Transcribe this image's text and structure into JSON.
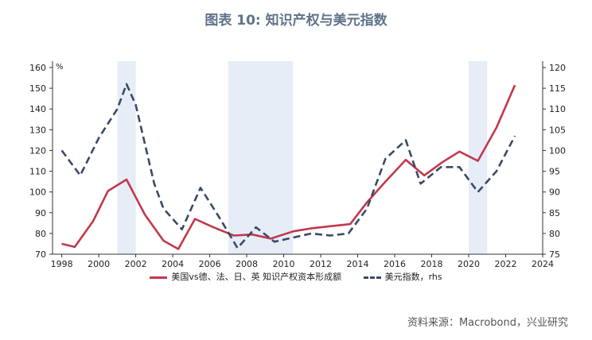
{
  "title": "图表 10: 知识产权与美元指数",
  "source": "资料来源：Macrobond，兴业研究",
  "chart_data": {
    "type": "line",
    "left_axis": {
      "range": [
        70,
        160
      ],
      "ticks": [
        70,
        80,
        90,
        100,
        110,
        120,
        130,
        140,
        150,
        160
      ],
      "unit_label": "%"
    },
    "right_axis": {
      "range": [
        75,
        120
      ],
      "ticks": [
        75,
        80,
        85,
        90,
        95,
        100,
        105,
        110,
        115,
        120
      ],
      "label": "rhs"
    },
    "x_axis": {
      "range": [
        1997.5,
        2024
      ],
      "ticks": [
        1998,
        2000,
        2002,
        2004,
        2006,
        2008,
        2010,
        2012,
        2014,
        2016,
        2018,
        2020,
        2022,
        2024
      ]
    },
    "shaded_periods": [
      [
        2001,
        2002
      ],
      [
        2007,
        2010.5
      ],
      [
        2020,
        2021
      ]
    ],
    "series": [
      {
        "name": "美国vs德、法、日、英 知识产权资本形成额",
        "axis": "left",
        "color": "#c0394d",
        "style": "solid",
        "points": [
          [
            1998,
            75
          ],
          [
            1998.7,
            73.5
          ],
          [
            1999.7,
            86
          ],
          [
            2000.5,
            100.5
          ],
          [
            2001.5,
            106
          ],
          [
            2002.5,
            89
          ],
          [
            2003.5,
            76.5
          ],
          [
            2004.3,
            72.5
          ],
          [
            2005.2,
            87
          ],
          [
            2006.2,
            83
          ],
          [
            2007.3,
            79
          ],
          [
            2008.3,
            79.5
          ],
          [
            2009.3,
            77.5
          ],
          [
            2010.5,
            81
          ],
          [
            2011.5,
            82.5
          ],
          [
            2012.5,
            83.5
          ],
          [
            2013.6,
            84.5
          ],
          [
            2014.5,
            95
          ],
          [
            2015.5,
            105
          ],
          [
            2016.6,
            115.5
          ],
          [
            2017.6,
            108
          ],
          [
            2018.6,
            114.5
          ],
          [
            2019.5,
            119.5
          ],
          [
            2020.5,
            115
          ],
          [
            2021.5,
            131
          ],
          [
            2022.5,
            151.5
          ]
        ]
      },
      {
        "name": "美元指数，rhs",
        "axis": "right",
        "color": "#3b4a65",
        "style": "dashed",
        "points": [
          [
            1998,
            100
          ],
          [
            1999,
            94
          ],
          [
            2000,
            103
          ],
          [
            2001,
            110
          ],
          [
            2001.5,
            116
          ],
          [
            2002,
            111
          ],
          [
            2003,
            92
          ],
          [
            2003.5,
            86
          ],
          [
            2004.5,
            81
          ],
          [
            2005.5,
            91
          ],
          [
            2006.5,
            84
          ],
          [
            2007.5,
            76.5
          ],
          [
            2008.5,
            81.5
          ],
          [
            2009.5,
            78
          ],
          [
            2010.5,
            79
          ],
          [
            2011.5,
            80
          ],
          [
            2012.5,
            79.5
          ],
          [
            2013.5,
            80
          ],
          [
            2014.5,
            86
          ],
          [
            2015.5,
            98
          ],
          [
            2016.6,
            102.5
          ],
          [
            2017.4,
            92
          ],
          [
            2018.5,
            96
          ],
          [
            2019.5,
            96
          ],
          [
            2020.5,
            90
          ],
          [
            2021.5,
            95
          ],
          [
            2022.5,
            103.5
          ]
        ]
      }
    ]
  }
}
